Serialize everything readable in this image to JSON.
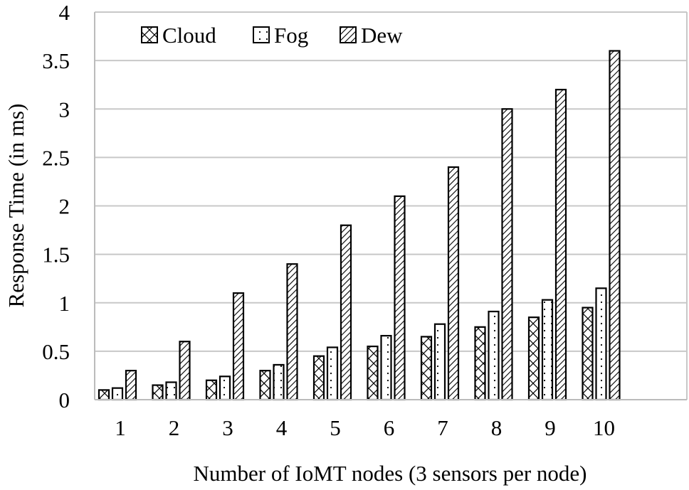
{
  "chart_data": {
    "type": "bar",
    "title": "",
    "xlabel": "Number of IoMT nodes (3 sensors per node)",
    "ylabel": "Response Time (in ms)",
    "categories": [
      "1",
      "2",
      "3",
      "4",
      "5",
      "6",
      "7",
      "8",
      "9",
      "10"
    ],
    "series": [
      {
        "name": "Cloud",
        "pattern": "crosshatch",
        "values": [
          0.1,
          0.15,
          0.2,
          0.3,
          0.45,
          0.55,
          0.65,
          0.75,
          0.85,
          0.95
        ]
      },
      {
        "name": "Fog",
        "pattern": "dots",
        "values": [
          0.12,
          0.18,
          0.24,
          0.36,
          0.54,
          0.66,
          0.78,
          0.91,
          1.03,
          1.15
        ]
      },
      {
        "name": "Dew",
        "pattern": "diagonal",
        "values": [
          0.3,
          0.6,
          1.1,
          1.4,
          1.8,
          2.1,
          2.4,
          3.0,
          3.2,
          3.6
        ]
      }
    ],
    "ylim": [
      0,
      4
    ],
    "yticks": [
      "0",
      "0.5",
      "1",
      "1.5",
      "2",
      "2.5",
      "3",
      "3.5",
      "4"
    ],
    "grid": true,
    "legend_position": "top-left inside"
  },
  "colors": {
    "grid": "#c8c8c8",
    "bar_stroke": "#000000",
    "bar_fill": "#ffffff"
  }
}
